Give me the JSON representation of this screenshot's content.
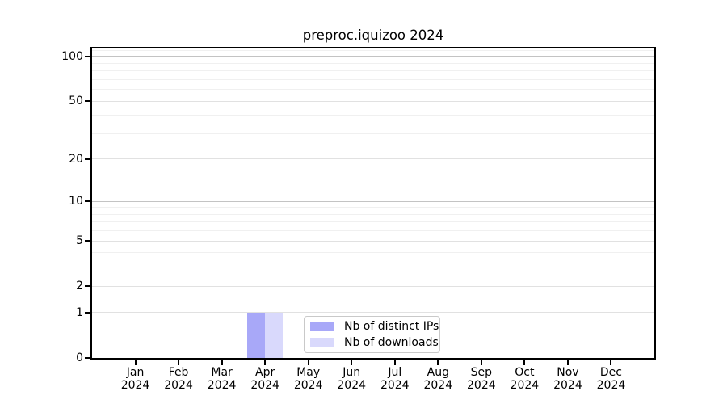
{
  "chart_data": {
    "type": "bar",
    "title": "preproc.iquizoo 2024",
    "categories": [
      "Jan",
      "Feb",
      "Mar",
      "Apr",
      "May",
      "Jun",
      "Jul",
      "Aug",
      "Sep",
      "Oct",
      "Nov",
      "Dec"
    ],
    "x_tick_year": "2024",
    "series": [
      {
        "name": "Nb of distinct IPs",
        "color": "#a8a8f8",
        "values": [
          0,
          0,
          0,
          1,
          0,
          0,
          0,
          0,
          0,
          0,
          0,
          0
        ]
      },
      {
        "name": "Nb of downloads",
        "color": "#d9d9fc",
        "values": [
          0,
          0,
          0,
          1,
          0,
          0,
          0,
          0,
          0,
          0,
          0,
          0
        ]
      }
    ],
    "xlabel": "",
    "ylabel": "",
    "y_scale": "log1p",
    "y_ticks": [
      0,
      1,
      2,
      5,
      10,
      20,
      50,
      100
    ],
    "y_major_gridlines": [
      10,
      100
    ],
    "y_minor_gridlines": [
      3,
      4,
      6,
      7,
      8,
      9,
      30,
      40,
      60,
      70,
      80,
      90,
      110
    ],
    "ylim": [
      0,
      113
    ],
    "grid": "both",
    "legend": {
      "position": "lower center",
      "entries": [
        "Nb of distinct IPs",
        "Nb of downloads"
      ]
    },
    "colors": {
      "spine": "#000000",
      "grid_major": "#c3c3c3",
      "grid_mid": "#e1e1e1",
      "grid_minor": "#f0f0f0",
      "legend_border": "#c9c9c9",
      "background": "#ffffff"
    }
  }
}
